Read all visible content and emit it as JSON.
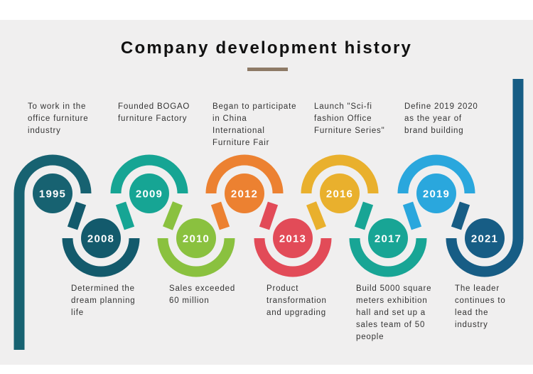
{
  "title": "Company development history",
  "colors": {
    "1995": "#176271",
    "2008": "#135a6c",
    "2009": "#16a594",
    "2010": "#8ac13f",
    "2012": "#ec8131",
    "2013": "#e24b58",
    "2016": "#e9b02d",
    "2017": "#18a595",
    "2019": "#2aa7dd",
    "2021": "#175d85",
    "accent_bar": "#8e7a66"
  },
  "milestones": [
    {
      "year": "1995",
      "text": "To work in the\noffice furniture\nindustry"
    },
    {
      "year": "2008",
      "text": "Determined the\ndream planning\nlife"
    },
    {
      "year": "2009",
      "text": "Founded BOGAO\nfurniture Factory"
    },
    {
      "year": "2010",
      "text": "Sales exceeded\n60 million"
    },
    {
      "year": "2012",
      "text": "Began to participate\nin China\nInternational\nFurniture Fair"
    },
    {
      "year": "2013",
      "text": "Product\ntransformation\nand upgrading"
    },
    {
      "year": "2016",
      "text": "Launch \"Sci-fi\nfashion Office\nFurniture Series\""
    },
    {
      "year": "2017",
      "text": "Build 5000 square\nmeters exhibition\nhall and set up a\nsales team of 50\npeople"
    },
    {
      "year": "2019",
      "text": "Define 2019 2020\nas the year of\nbrand building"
    },
    {
      "year": "2021",
      "text": "The leader\ncontinues to\nlead the\nindustry"
    }
  ]
}
